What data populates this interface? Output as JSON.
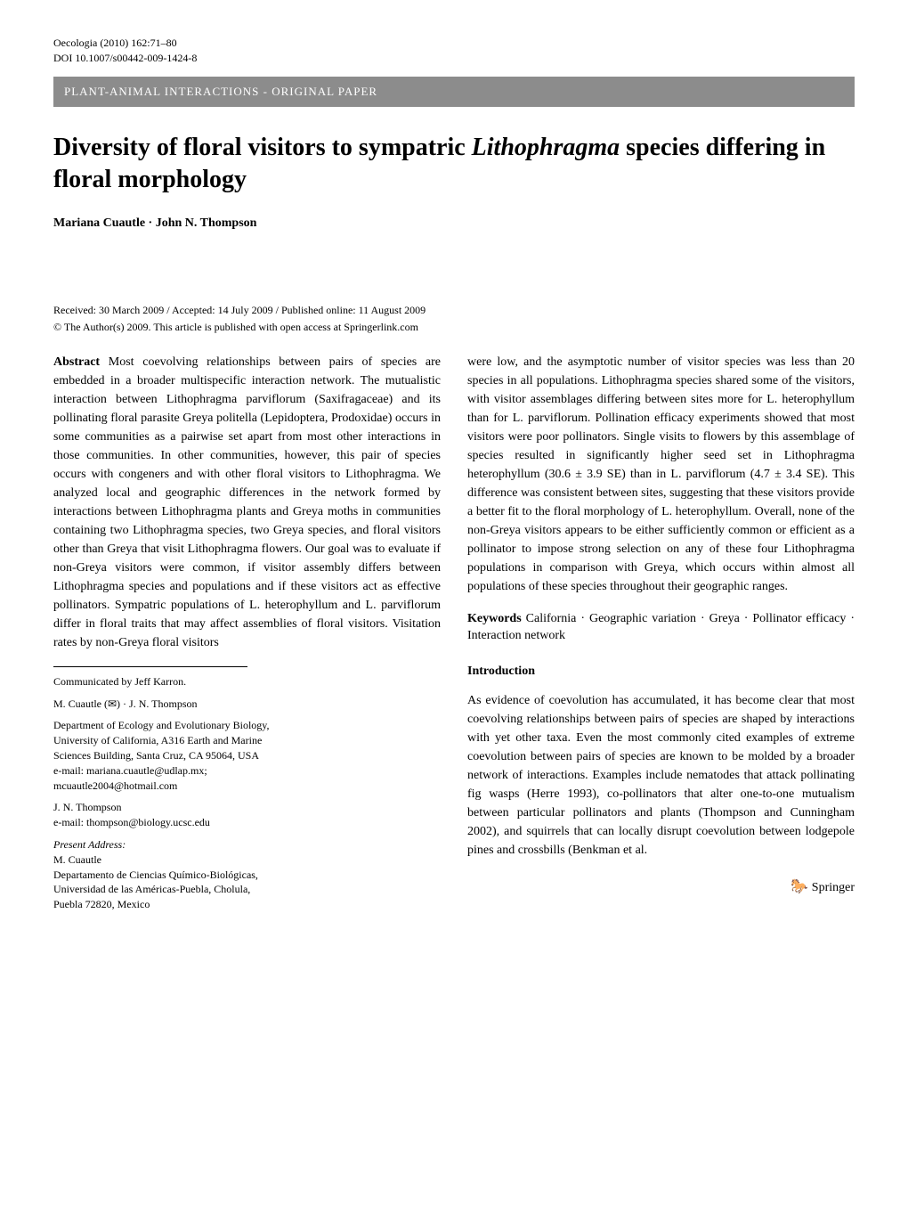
{
  "header": {
    "journal_line": "Oecologia (2010) 162:71–80",
    "doi_line": "DOI 10.1007/s00442-009-1424-8"
  },
  "banner": {
    "text": "PLANT-ANIMAL INTERACTIONS - ORIGINAL PAPER",
    "bg_color": "#8c8c8c",
    "text_color": "#ffffff"
  },
  "title": {
    "prefix": "Diversity of floral visitors to sympatric ",
    "italic": "Lithophragma",
    "suffix": " species differing in floral morphology"
  },
  "authors": "Mariana Cuautle · John N. Thompson",
  "dates": "Received: 30 March 2009 / Accepted: 14 July 2009 / Published online: 11 August 2009",
  "copyright": "© The Author(s) 2009. This article is published with open access at Springerlink.com",
  "abstract": {
    "label": "Abstract",
    "left_text": "Most coevolving relationships between pairs of species are embedded in a broader multispecific interaction network. The mutualistic interaction between Lithophragma parviflorum (Saxifragaceae) and its pollinating floral parasite Greya politella (Lepidoptera, Prodoxidae) occurs in some communities as a pairwise set apart from most other interactions in those communities. In other communities, however, this pair of species occurs with congeners and with other floral visitors to Lithophragma. We analyzed local and geographic differences in the network formed by interactions between Lithophragma plants and Greya moths in communities containing two Lithophragma species, two Greya species, and floral visitors other than Greya that visit Lithophragma flowers. Our goal was to evaluate if non-Greya visitors were common, if visitor assembly differs between Lithophragma species and populations and if these visitors act as effective pollinators. Sympatric populations of L. heterophyllum and L. parviflorum differ in floral traits that may affect assemblies of floral visitors. Visitation rates by non-Greya floral visitors",
    "right_text": "were low, and the asymptotic number of visitor species was less than 20 species in all populations. Lithophragma species shared some of the visitors, with visitor assemblages differing between sites more for L. heterophyllum than for L. parviflorum. Pollination efficacy experiments showed that most visitors were poor pollinators. Single visits to flowers by this assemblage of species resulted in significantly higher seed set in Lithophragma heterophyllum (30.6 ± 3.9 SE) than in L. parviflorum (4.7 ± 3.4 SE). This difference was consistent between sites, suggesting that these visitors provide a better fit to the floral morphology of L. heterophyllum. Overall, none of the non-Greya visitors appears to be either sufficiently common or efficient as a pollinator to impose strong selection on any of these four Lithophragma populations in comparison with Greya, which occurs within almost all populations of these species throughout their geographic ranges."
  },
  "keywords": {
    "label": "Keywords",
    "text": "California · Geographic variation · Greya · Pollinator efficacy · Interaction network"
  },
  "introduction": {
    "heading": "Introduction",
    "text": "As evidence of coevolution has accumulated, it has become clear that most coevolving relationships between pairs of species are shaped by interactions with yet other taxa. Even the most commonly cited examples of extreme coevolution between pairs of species are known to be molded by a broader network of interactions. Examples include nematodes that attack pollinating fig wasps (Herre 1993), co-pollinators that alter one-to-one mutualism between particular pollinators and plants (Thompson and Cunningham 2002), and squirrels that can locally disrupt coevolution between lodgepole pines and crossbills (Benkman et al."
  },
  "footer": {
    "communicated": "Communicated by Jeff Karron.",
    "corr_authors": "M. Cuautle (✉) · J. N. Thompson",
    "affiliation1_lines": [
      "Department of Ecology and Evolutionary Biology,",
      "University of California, A316 Earth and Marine",
      "Sciences Building, Santa Cruz, CA 95064, USA",
      "e-mail: mariana.cuautle@udlap.mx;",
      "mcuautle2004@hotmail.com"
    ],
    "author2": "J. N. Thompson",
    "author2_email": "e-mail: thompson@biology.ucsc.edu",
    "present_label": "Present Address:",
    "present_name": "M. Cuautle",
    "present_lines": [
      "Departamento de Ciencias Químico-Biológicas,",
      "Universidad de las Américas-Puebla, Cholula,",
      "Puebla 72820, Mexico"
    ]
  },
  "springer": {
    "icon": "🐎",
    "text": "Springer"
  },
  "style": {
    "body_bg": "#ffffff",
    "body_color": "#000000",
    "title_fontsize": 28,
    "body_fontsize": 14,
    "small_fontsize": 12
  }
}
